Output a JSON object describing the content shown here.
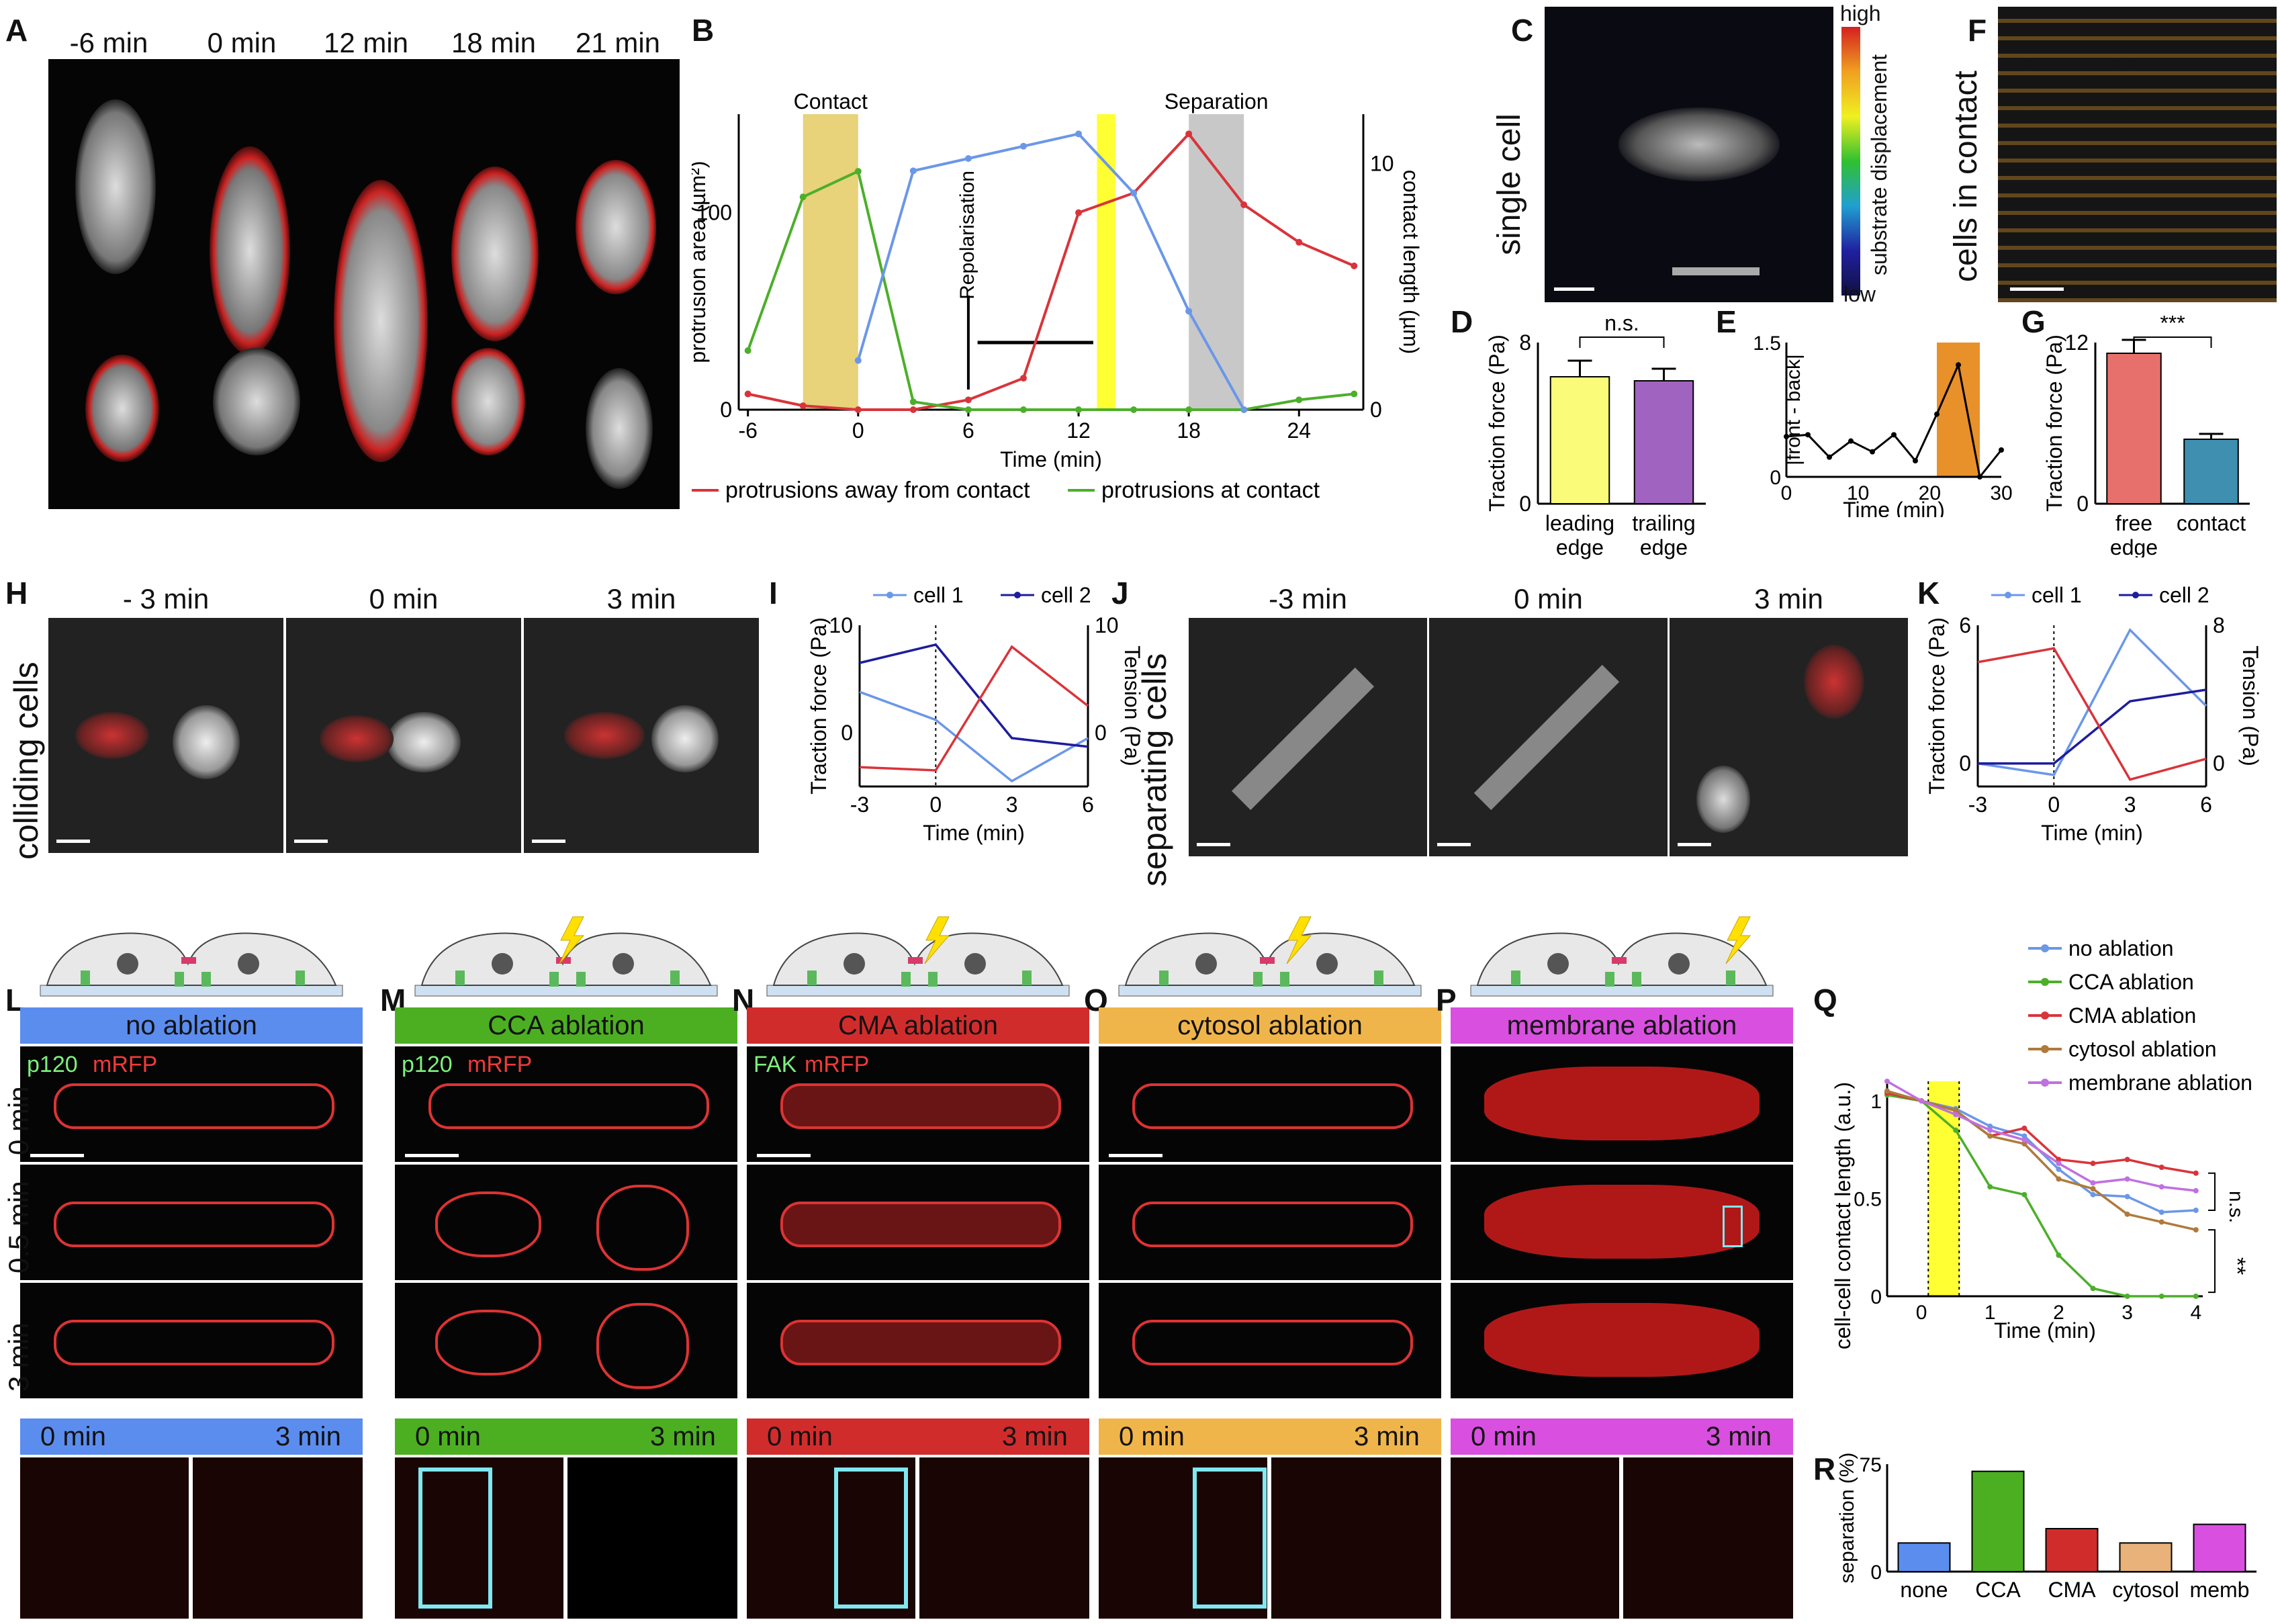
{
  "panel_letters": {
    "A": "A",
    "B": "B",
    "C": "C",
    "D": "D",
    "E": "E",
    "F": "F",
    "G": "G",
    "H": "H",
    "I": "I",
    "J": "J",
    "K": "K",
    "L": "L",
    "M": "M",
    "N": "N",
    "O": "O",
    "P": "P",
    "Q": "Q",
    "R": "R"
  },
  "panelA": {
    "times": [
      "-6 min",
      "0 min",
      "12 min",
      "18 min",
      "21 min"
    ]
  },
  "panelC": {
    "side_label": "single cell",
    "colorbar_high": "high",
    "colorbar_low": "low",
    "colorbar_title": "substrate displacement"
  },
  "panelF": {
    "side_label": "cells in contact"
  },
  "panelH": {
    "side_label": "colliding cells",
    "times": [
      "- 3 min",
      "0 min",
      "3 min"
    ]
  },
  "panelJ": {
    "side_label": "separating cells",
    "times": [
      "-3 min",
      "0 min",
      "3 min"
    ]
  },
  "panelsLP": [
    {
      "letter": "L",
      "header": "no ablation",
      "color": "#5b8def",
      "stain1": "p120",
      "stain2": "mRFP",
      "t0": "0 min",
      "t3": "3 min"
    },
    {
      "letter": "M",
      "header": "CCA ablation",
      "color": "#4caf22",
      "stain1": "p120",
      "stain2": "mRFP",
      "t0": "0 min",
      "t3": "3 min"
    },
    {
      "letter": "N",
      "header": "CMA ablation",
      "color": "#d12c2c",
      "stain1": "FAK",
      "stain2": "mRFP",
      "t0": "0 min",
      "t3": "3 min"
    },
    {
      "letter": "O",
      "header": "cytosol ablation",
      "color": "#f0b54a",
      "stain1": "",
      "stain2": "",
      "t0": "0 min",
      "t3": "3 min"
    },
    {
      "letter": "P",
      "header": "membrane ablation",
      "color": "#d94fe0",
      "stain1": "",
      "stain2": "",
      "t0": "0 min",
      "t3": "3 min"
    }
  ],
  "row_labels": [
    "0 min",
    "0.5 min",
    "3 min"
  ],
  "colors": {
    "yellow_bar": "#ffff33",
    "gold_bar": "#e8d27a",
    "gray_bar": "#c8c8c8",
    "orange_bar": "#e8902a",
    "red": "#d9343a",
    "green": "#4caf2a",
    "blue": "#6b97e8",
    "navy": "#1d1d9e",
    "cyan": "#7fe8f0"
  },
  "chart_data": [
    {
      "id": "B",
      "type": "line",
      "xlabel": "Time (min)",
      "ylabel": "protrusion area (µm²)",
      "y2label": "contact length (µm)",
      "x": [
        -6,
        -3,
        0,
        3,
        6,
        9,
        12,
        15,
        18,
        21,
        24,
        27
      ],
      "xticks": [
        "-6",
        "0",
        "6",
        "12",
        "18",
        "24"
      ],
      "yticks": [
        "0",
        "100"
      ],
      "y2ticks": [
        "0",
        "10"
      ],
      "ylim": [
        0,
        150
      ],
      "y2lim": [
        0,
        12
      ],
      "annotations": [
        "Contact",
        "Separation",
        "Repolarisation"
      ],
      "series": [
        {
          "name": "protrusions away from contact",
          "color": "#d9343a",
          "axis": "left",
          "values": [
            8,
            2,
            0,
            0,
            5,
            16,
            100,
            110,
            140,
            104,
            85,
            73
          ]
        },
        {
          "name": "protrusions at contact",
          "color": "#4caf2a",
          "axis": "left",
          "values": [
            30,
            108,
            121,
            4,
            0,
            0,
            0,
            0,
            0,
            0,
            5,
            8
          ]
        },
        {
          "name": "contact length",
          "color": "#6b97e8",
          "axis": "right",
          "values": [
            null,
            null,
            2,
            9.7,
            10.2,
            10.7,
            11.2,
            8.8,
            4.0,
            0,
            null,
            null
          ]
        }
      ],
      "shaded": [
        {
          "from": -3,
          "to": 0,
          "color": "gold"
        },
        {
          "from": 13,
          "to": 14,
          "color": "yellow"
        },
        {
          "from": 18,
          "to": 21,
          "color": "gray"
        }
      ]
    },
    {
      "id": "D",
      "type": "bar",
      "ylabel": "Traction force (Pa)",
      "yticks": [
        "0",
        "8"
      ],
      "ylim": [
        0,
        8
      ],
      "categories": [
        "leading edge",
        "trailing edge"
      ],
      "values": [
        6.3,
        6.1
      ],
      "errors": [
        0.8,
        0.6
      ],
      "sig": "n.s."
    },
    {
      "id": "E",
      "type": "line",
      "ylabel": "|front - back|",
      "xlabel": "Time (min)",
      "xticks": [
        "0",
        "10",
        "20",
        "30"
      ],
      "yticks": [
        "0",
        "1.5"
      ],
      "ylim": [
        0,
        1.5
      ],
      "xlim": [
        0,
        30
      ],
      "x": [
        0,
        3,
        6,
        9,
        12,
        15,
        18,
        21,
        24,
        27,
        30
      ],
      "values": [
        0.45,
        0.47,
        0.22,
        0.4,
        0.28,
        0.47,
        0.18,
        0.7,
        1.25,
        0.0,
        0.3
      ],
      "shaded": [
        {
          "from": 21,
          "to": 27
        }
      ]
    },
    {
      "id": "G",
      "type": "bar",
      "ylabel": "Traction force (Pa)",
      "yticks": [
        "0",
        "12"
      ],
      "ylim": [
        0,
        12
      ],
      "categories": [
        "free edge",
        "contact"
      ],
      "values": [
        11.2,
        4.8
      ],
      "errors": [
        1.0,
        0.4
      ],
      "sig": "***"
    },
    {
      "id": "I",
      "type": "line",
      "xlabel": "Time (min)",
      "ylabel": "Traction force (Pa)",
      "y2label": "Tension (Pa)",
      "x": [
        -3,
        0,
        3,
        6
      ],
      "xticks": [
        "-3",
        "0",
        "3",
        "6"
      ],
      "yticks": [
        "0",
        "10"
      ],
      "y2ticks": [
        "0",
        "10"
      ],
      "ylim": [
        -5,
        10
      ],
      "series": [
        {
          "name": "cell 1",
          "color": "#6b97e8",
          "values": [
            3.8,
            1.2,
            -4.5,
            -0.5
          ]
        },
        {
          "name": "cell 2",
          "color": "#1d1d9e",
          "values": [
            6.5,
            8.2,
            -0.5,
            -1.3
          ]
        },
        {
          "name": "Tension",
          "color": "#d9343a",
          "values": [
            -3.2,
            -3.5,
            8.0,
            2.5
          ]
        }
      ]
    },
    {
      "id": "K",
      "type": "line",
      "xlabel": "Time (min)",
      "ylabel": "Traction force (Pa)",
      "y2label": "Tension (Pa)",
      "x": [
        -3,
        0,
        3,
        6
      ],
      "xticks": [
        "-3",
        "0",
        "3",
        "6"
      ],
      "yticks": [
        "0",
        "6"
      ],
      "y2ticks": [
        "0",
        "8"
      ],
      "ylim": [
        -1,
        6
      ],
      "series": [
        {
          "name": "cell 1",
          "color": "#6b97e8",
          "values": [
            0,
            -0.5,
            5.8,
            2.5
          ]
        },
        {
          "name": "cell 2",
          "color": "#1d1d9e",
          "values": [
            0,
            0,
            2.7,
            3.2
          ]
        },
        {
          "name": "Tension",
          "color": "#d9343a",
          "values": [
            4.4,
            5.0,
            -0.7,
            0.2
          ]
        }
      ]
    },
    {
      "id": "Q",
      "type": "line",
      "xlabel": "Time (min)",
      "ylabel": "cell-cell contact length (a.u.)",
      "x": [
        -0.5,
        0,
        0.5,
        1,
        1.5,
        2,
        2.5,
        3,
        3.5,
        4
      ],
      "xticks": [
        "0",
        "1",
        "2",
        "3",
        "4"
      ],
      "yticks": [
        "0",
        "0.5",
        "1"
      ],
      "ylim": [
        0,
        1.1
      ],
      "series": [
        {
          "name": "no ablation",
          "color": "#6b97e8",
          "values": [
            1.05,
            1.0,
            0.96,
            0.87,
            0.82,
            0.65,
            0.52,
            0.51,
            0.43,
            0.44
          ]
        },
        {
          "name": "CCA ablation",
          "color": "#4caf2a",
          "values": [
            1.03,
            1.0,
            0.85,
            0.56,
            0.52,
            0.21,
            0.04,
            0.0,
            0.0,
            0.0
          ]
        },
        {
          "name": "CMA ablation",
          "color": "#d9343a",
          "values": [
            1.04,
            1.0,
            0.95,
            0.82,
            0.86,
            0.7,
            0.68,
            0.7,
            0.66,
            0.63
          ]
        },
        {
          "name": "cytosol ablation",
          "color": "#b07a3a",
          "values": [
            1.05,
            1.0,
            0.95,
            0.82,
            0.78,
            0.6,
            0.55,
            0.42,
            0.38,
            0.34
          ]
        },
        {
          "name": "membrane ablation",
          "color": "#c070e0",
          "values": [
            1.1,
            1.0,
            0.93,
            0.85,
            0.8,
            0.68,
            0.58,
            0.6,
            0.56,
            0.54
          ]
        }
      ],
      "sig": [
        "n.s.",
        "**"
      ]
    },
    {
      "id": "R",
      "type": "bar",
      "ylabel": "separation (%)",
      "yticks": [
        "0",
        "75"
      ],
      "ylim": [
        0,
        75
      ],
      "categories": [
        "none",
        "CCA",
        "CMA",
        "cytosol",
        "memb"
      ],
      "values": [
        20,
        70,
        30,
        20,
        33
      ],
      "colors": [
        "#5b8def",
        "#4caf22",
        "#d12c2c",
        "#e8b27a",
        "#d94fe0"
      ]
    }
  ]
}
